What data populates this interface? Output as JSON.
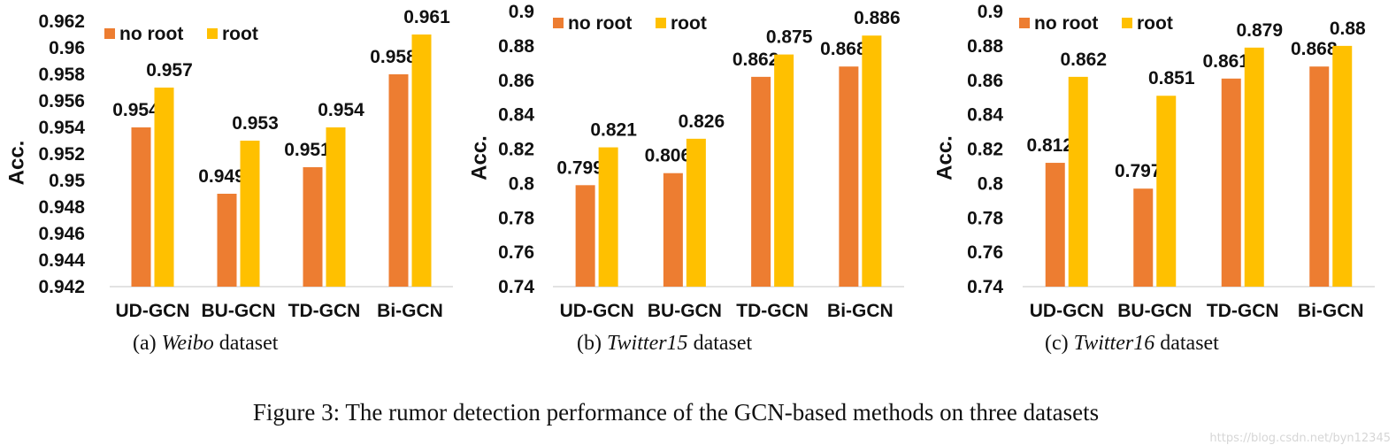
{
  "colors": {
    "no_root": "#ED7D31",
    "root": "#FFC000",
    "axis": "#D9D9D9"
  },
  "chart_data": [
    {
      "type": "bar",
      "title": "",
      "ylabel": "Acc.",
      "xlabel": "",
      "categories": [
        "UD-GCN",
        "BU-GCN",
        "TD-GCN",
        "Bi-GCN"
      ],
      "series": [
        {
          "name": "no root",
          "values": [
            0.954,
            0.949,
            0.951,
            0.958
          ],
          "labels": [
            "0.954",
            "0.949",
            "0.951",
            "0.958"
          ]
        },
        {
          "name": "root",
          "values": [
            0.957,
            0.953,
            0.954,
            0.961
          ],
          "labels": [
            "0.957",
            "0.953",
            "0.954",
            "0.961"
          ]
        }
      ],
      "ylim": [
        0.942,
        0.962
      ],
      "yticks": [
        "0.942",
        "0.944",
        "0.946",
        "0.948",
        "0.95",
        "0.952",
        "0.954",
        "0.956",
        "0.958",
        "0.96",
        "0.962"
      ],
      "legend_position": "top-left",
      "caption": {
        "prefix": "(a)",
        "name": "Weibo",
        "suffix": "dataset"
      }
    },
    {
      "type": "bar",
      "title": "",
      "ylabel": "Acc.",
      "xlabel": "",
      "categories": [
        "UD-GCN",
        "BU-GCN",
        "TD-GCN",
        "Bi-GCN"
      ],
      "series": [
        {
          "name": "no root",
          "values": [
            0.799,
            0.806,
            0.862,
            0.868
          ],
          "labels": [
            "0.799",
            "0.806",
            "0.862",
            "0.868"
          ]
        },
        {
          "name": "root",
          "values": [
            0.821,
            0.826,
            0.875,
            0.886
          ],
          "labels": [
            "0.821",
            "0.826",
            "0.875",
            "0.886"
          ]
        }
      ],
      "ylim": [
        0.74,
        0.9
      ],
      "yticks": [
        "0.74",
        "0.76",
        "0.78",
        "0.8",
        "0.82",
        "0.84",
        "0.86",
        "0.88",
        "0.9"
      ],
      "legend_position": "top-left",
      "caption": {
        "prefix": "(b)",
        "name": "Twitter15",
        "suffix": "dataset"
      }
    },
    {
      "type": "bar",
      "title": "",
      "ylabel": "Acc.",
      "xlabel": "",
      "categories": [
        "UD-GCN",
        "BU-GCN",
        "TD-GCN",
        "Bi-GCN"
      ],
      "series": [
        {
          "name": "no root",
          "values": [
            0.812,
            0.797,
            0.861,
            0.868
          ],
          "labels": [
            "0.812",
            "0.797",
            "0.861",
            "0.868"
          ]
        },
        {
          "name": "root",
          "values": [
            0.862,
            0.851,
            0.879,
            0.88
          ],
          "labels": [
            "0.862",
            "0.851",
            "0.879",
            "0.88"
          ]
        }
      ],
      "ylim": [
        0.74,
        0.9
      ],
      "yticks": [
        "0.74",
        "0.76",
        "0.78",
        "0.8",
        "0.82",
        "0.84",
        "0.86",
        "0.88",
        "0.9"
      ],
      "legend_position": "top-left",
      "caption": {
        "prefix": "(c)",
        "name": "Twitter16",
        "suffix": "dataset"
      }
    }
  ],
  "figure_caption": "Figure 3: The rumor detection performance of the GCN-based methods on three datasets",
  "watermark": "https://blog.csdn.net/byn12345"
}
